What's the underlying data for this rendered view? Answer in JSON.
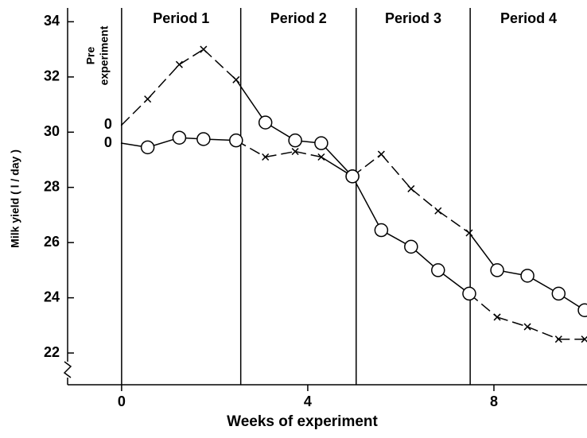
{
  "chart_data": {
    "type": "line",
    "ylabel": "Milk yield ( l / day )",
    "xlabel": "Weeks of experiment",
    "annotation": [
      "Pre",
      "experiment"
    ],
    "periods": [
      {
        "label": "Period 1",
        "start": 0
      },
      {
        "label": "Period 2",
        "start": 2.56
      },
      {
        "label": "Period 3",
        "start": 5.04
      },
      {
        "label": "Period 4",
        "start": 7.49
      }
    ],
    "x": [
      0,
      0.56,
      1.24,
      1.76,
      2.46,
      3.09,
      3.73,
      4.29,
      4.96,
      5.58,
      6.22,
      6.8,
      7.47,
      8.07,
      8.72,
      9.39,
      9.95
    ],
    "series": [
      {
        "label": "0",
        "color": "#000",
        "values": [
          30.26,
          31.2,
          32.45,
          33.0,
          31.9,
          30.35,
          29.7,
          29.6,
          28.4,
          26.45,
          25.85,
          25.0,
          24.15,
          23.3,
          22.95,
          22.5,
          22.5
        ],
        "markers": [
          null,
          "x",
          "x",
          "x",
          "x",
          "o",
          "o",
          "o",
          "o",
          "o",
          "o",
          "o",
          "o",
          "x",
          "x",
          "x",
          "x"
        ]
      },
      {
        "label": "0",
        "color": "#000",
        "values": [
          29.6,
          29.45,
          29.8,
          29.75,
          29.7,
          29.1,
          29.3,
          29.1,
          28.4,
          29.2,
          27.95,
          27.15,
          26.35,
          25.0,
          24.8,
          24.15,
          23.55
        ],
        "markers": [
          null,
          "o",
          "o",
          "o",
          "o",
          "x",
          "x",
          "x",
          "o",
          "x",
          "x",
          "x",
          "x",
          "o",
          "o",
          "o",
          "o"
        ]
      }
    ],
    "xlim": [
      -1.16,
      10.0
    ],
    "ylim": [
      20.85,
      34.5
    ],
    "xticks": [
      0,
      4,
      8
    ],
    "yticks": [
      22,
      24,
      26,
      28,
      30,
      32,
      34
    ]
  }
}
